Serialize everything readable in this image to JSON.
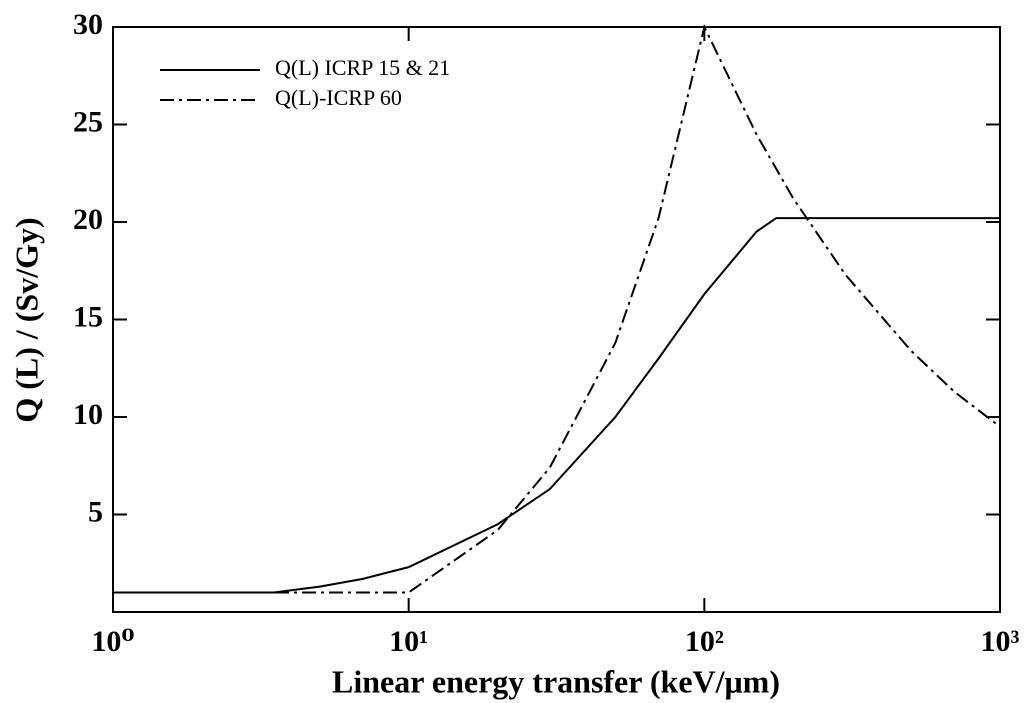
{
  "chart_data": {
    "type": "line",
    "xlabel": "Linear energy transfer (keV/μm)",
    "ylabel": "Q (L) / (Sv/Gy)",
    "xscale": "log",
    "xlim": [
      1,
      1000
    ],
    "xticks": [
      {
        "value": 1,
        "label": "10⁰"
      },
      {
        "value": 10,
        "label": "10¹"
      },
      {
        "value": 100,
        "label": "10²"
      },
      {
        "value": 1000,
        "label": "10³"
      }
    ],
    "ylim": [
      0,
      30
    ],
    "yticks": [
      5,
      10,
      15,
      20,
      25,
      30
    ],
    "legend": "upper left",
    "series": [
      {
        "name": "Q(L) ICRP 15 & 21",
        "color": "#000000",
        "dash": "solid",
        "x": [
          1,
          3.5,
          5,
          7,
          10,
          20,
          30,
          50,
          70,
          100,
          150,
          175,
          1000
        ],
        "values": [
          1,
          1,
          1.3,
          1.7,
          2.3,
          4.5,
          6.3,
          10,
          13,
          16.3,
          19.5,
          20.2,
          20.2
        ]
      },
      {
        "name": "Q(L)-ICRP 60",
        "color": "#000000",
        "dash": "dashdot",
        "x": [
          1,
          10,
          20,
          30,
          50,
          70,
          100,
          150,
          200,
          300,
          500,
          700,
          1000
        ],
        "values": [
          1,
          1,
          4.2,
          7.4,
          13.8,
          20.2,
          30,
          24.5,
          21.2,
          17.3,
          13.4,
          11.3,
          9.5
        ]
      }
    ]
  }
}
